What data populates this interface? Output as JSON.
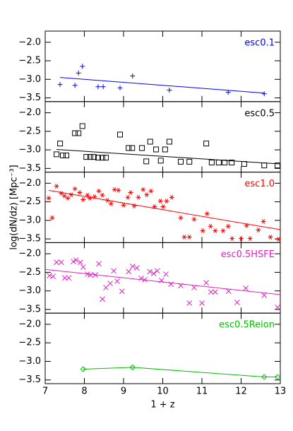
{
  "chart_data": [
    {
      "type": "scatter",
      "xlim": [
        7,
        13
      ],
      "ylim": [
        -3.6,
        -1.7
      ],
      "yticks": [
        {
          "value": -2.0,
          "label": "−2.0"
        },
        {
          "value": -2.5,
          "label": "−2.5"
        },
        {
          "value": -3.0,
          "label": "−3.0"
        },
        {
          "value": -3.5,
          "label": "−3.5"
        }
      ],
      "series": [
        {
          "name": "esc0.1",
          "color": "#0000ff",
          "marker": "plus",
          "x": [
            7.38,
            7.76,
            7.85,
            7.95,
            8.35,
            8.48,
            8.91,
            9.23,
            10.17,
            11.67,
            12.59
          ],
          "values": [
            -3.14,
            -3.16,
            -2.83,
            -2.65,
            -3.2,
            -3.2,
            -3.23,
            -2.91,
            -3.29,
            -3.35,
            -3.39
          ]
        }
      ],
      "fit": {
        "x": [
          7.38,
          12.59
        ],
        "values": [
          -2.95,
          -3.37
        ]
      }
    },
    {
      "type": "scatter",
      "xlim": [
        7,
        13
      ],
      "ylim": [
        -3.6,
        -1.7
      ],
      "yticks": [
        {
          "value": -2.0,
          "label": "−2.0"
        },
        {
          "value": -2.5,
          "label": "−2.5"
        },
        {
          "value": -3.0,
          "label": "−3.0"
        },
        {
          "value": -3.5,
          "label": "−3.5"
        }
      ],
      "series": [
        {
          "name": "esc0.5",
          "color": "#000000",
          "marker": "square",
          "x": [
            7.38,
            7.29,
            7.45,
            7.54,
            7.76,
            7.85,
            7.95,
            8.05,
            8.15,
            8.24,
            8.35,
            8.46,
            8.55,
            8.91,
            9.13,
            9.22,
            9.47,
            9.58,
            9.68,
            9.83,
            9.95,
            10.06,
            10.17,
            10.46,
            10.68,
            11.11,
            11.25,
            11.43,
            11.58,
            11.76,
            12.08,
            12.59,
            12.93
          ],
          "values": [
            -2.83,
            -3.12,
            -3.15,
            -3.15,
            -2.55,
            -2.55,
            -2.36,
            -3.19,
            -3.19,
            -3.19,
            -3.21,
            -3.21,
            -3.21,
            -2.59,
            -2.95,
            -2.95,
            -2.95,
            -3.31,
            -2.78,
            -2.99,
            -3.29,
            -2.99,
            -2.78,
            -3.32,
            -3.32,
            -2.83,
            -3.34,
            -3.34,
            -3.34,
            -3.34,
            -3.38,
            -3.42,
            -3.42
          ]
        }
      ],
      "fit": {
        "x": [
          7.29,
          13
        ],
        "values": [
          -2.99,
          -3.38
        ]
      }
    },
    {
      "type": "scatter",
      "xlim": [
        7,
        13
      ],
      "ylim": [
        -3.6,
        -1.7
      ],
      "ylabel": "log(dN/dz) [Mpc⁻³]",
      "yticks": [
        {
          "value": -2.0,
          "label": "−2.0"
        },
        {
          "value": -2.5,
          "label": "−2.5"
        },
        {
          "value": -3.0,
          "label": "−3.0"
        },
        {
          "value": -3.5,
          "label": "−3.5"
        }
      ],
      "series": [
        {
          "name": "esc1.0",
          "color": "#ff0000",
          "marker": "asterisk",
          "x": [
            7.09,
            7.18,
            7.29,
            7.41,
            7.49,
            7.58,
            7.67,
            7.76,
            7.88,
            7.97,
            8.08,
            8.14,
            8.26,
            8.37,
            8.46,
            8.59,
            8.68,
            8.77,
            8.87,
            9.0,
            9.11,
            9.18,
            9.27,
            9.38,
            9.5,
            9.59,
            9.7,
            9.79,
            9.94,
            10.01,
            10.1,
            10.23,
            10.46,
            10.55,
            10.68,
            10.8,
            11.02,
            11.13,
            11.22,
            11.34,
            11.54,
            11.67,
            11.77,
            12.0,
            12.14,
            12.23,
            12.44,
            12.57,
            12.75,
            12.95
          ],
          "values": [
            -2.4,
            -2.93,
            -2.08,
            -2.27,
            -2.34,
            -2.4,
            -2.31,
            -2.15,
            -2.25,
            -2.44,
            -2.32,
            -2.4,
            -2.36,
            -2.21,
            -2.32,
            -2.46,
            -2.55,
            -2.17,
            -2.19,
            -2.59,
            -2.38,
            -2.25,
            -2.61,
            -2.38,
            -2.17,
            -2.31,
            -2.21,
            -2.63,
            -2.48,
            -2.63,
            -2.48,
            -2.38,
            -2.93,
            -3.45,
            -3.45,
            -2.97,
            -3.28,
            -2.82,
            -3.16,
            -3.28,
            -3.28,
            -3.16,
            -3.49,
            -3.49,
            -3.14,
            -3.49,
            -3.26,
            -3.03,
            -3.45,
            -3.51
          ]
        }
      ],
      "fit": {
        "x": [
          7.09,
          13
        ],
        "values": [
          -2.19,
          -3.25
        ]
      }
    },
    {
      "type": "scatter",
      "xlim": [
        7,
        13
      ],
      "ylim": [
        -3.6,
        -1.7
      ],
      "yticks": [
        {
          "value": -2.0,
          "label": "−2.0"
        },
        {
          "value": -2.5,
          "label": "−2.5"
        },
        {
          "value": -3.0,
          "label": "−3.0"
        },
        {
          "value": -3.5,
          "label": "−3.5"
        }
      ],
      "series": [
        {
          "name": "esc0.5HSFE",
          "color": "#e020c0",
          "marker": "x",
          "x": [
            7.11,
            7.2,
            7.29,
            7.41,
            7.5,
            7.6,
            7.72,
            7.79,
            7.9,
            7.97,
            8.08,
            8.15,
            8.28,
            8.37,
            8.46,
            8.55,
            8.66,
            8.75,
            8.84,
            8.96,
            9.13,
            9.23,
            9.34,
            9.45,
            9.54,
            9.67,
            9.77,
            9.86,
            9.97,
            10.08,
            10.21,
            10.46,
            10.68,
            10.8,
            11.0,
            11.11,
            11.23,
            11.34,
            11.68,
            11.9,
            12.12,
            12.59,
            12.93
          ],
          "values": [
            -2.59,
            -2.61,
            -2.23,
            -2.23,
            -2.65,
            -2.65,
            -2.21,
            -2.17,
            -2.23,
            -2.36,
            -2.55,
            -2.57,
            -2.57,
            -2.27,
            -3.22,
            -2.91,
            -2.8,
            -2.46,
            -2.74,
            -3.01,
            -2.48,
            -2.34,
            -2.38,
            -2.66,
            -2.7,
            -2.48,
            -2.53,
            -2.46,
            -2.72,
            -2.55,
            -2.82,
            -2.86,
            -3.33,
            -2.91,
            -3.33,
            -2.78,
            -3.03,
            -3.03,
            -3.01,
            -3.31,
            -2.93,
            -3.12,
            -3.44
          ]
        }
      ],
      "fit": {
        "x": [
          7,
          13
        ],
        "values": [
          -2.42,
          -3.1
        ]
      }
    },
    {
      "type": "scatter",
      "xlim": [
        7,
        13
      ],
      "ylim": [
        -3.6,
        -1.7
      ],
      "xlabel": "1 + z",
      "xticks": [
        7,
        8,
        9,
        10,
        11,
        12,
        13
      ],
      "yticks": [
        {
          "value": -2.0,
          "label": "−2.0"
        },
        {
          "value": -2.5,
          "label": "−2.5"
        },
        {
          "value": -3.0,
          "label": "−3.0"
        },
        {
          "value": -3.5,
          "label": "−3.5"
        }
      ],
      "series": [
        {
          "name": "esc0.5Reion",
          "color": "#00c000",
          "marker": "diamond",
          "x": [
            7.97,
            9.23,
            12.59,
            12.93
          ],
          "values": [
            -3.21,
            -3.16,
            -3.42,
            -3.42
          ]
        }
      ],
      "fit": {
        "x": [
          7.97,
          9.23,
          12.59,
          12.93
        ],
        "values": [
          -3.21,
          -3.16,
          -3.42,
          -3.42
        ]
      }
    }
  ]
}
